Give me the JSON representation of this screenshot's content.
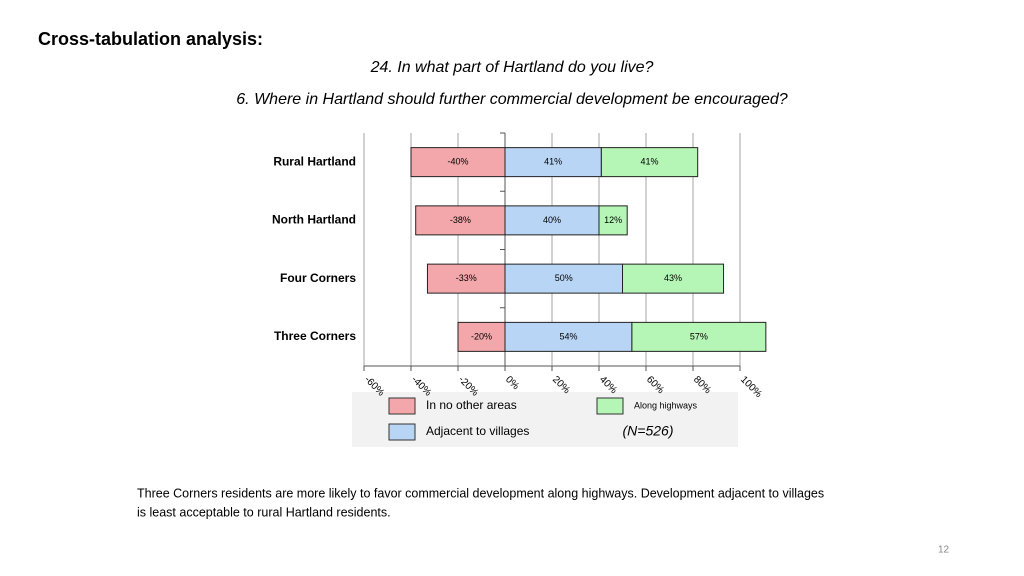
{
  "slide": {
    "heading": "Cross-tabulation analysis:",
    "question_a": "24. In what part of Hartland do you live?",
    "question_b": "6. Where in Hartland should further commercial development be encouraged?",
    "note": [
      "Three Corners residents are more likely to favor commercial development along highways. Development adjacent to villages",
      "is least acceptable to rural Hartland residents."
    ],
    "sample_size": "(N=526)",
    "page_number": "12"
  },
  "chart_data": {
    "type": "diverging-bar",
    "categories": [
      "Rural Hartland",
      "North Hartland",
      "Four Corners",
      "Three Corners"
    ],
    "series": [
      {
        "name": "In no other areas",
        "color": "#f4a7aa",
        "values": [
          -40,
          -38,
          -33,
          -20
        ],
        "value_labels": [
          "-40%",
          "-38%",
          "-33%",
          "-20%"
        ]
      },
      {
        "name": "Adjacent to villages",
        "color": "#b9d5f5",
        "values": [
          41,
          40,
          50,
          54
        ],
        "value_labels": [
          "41%",
          "40%",
          "50%",
          "54%"
        ]
      },
      {
        "name": "Along highways",
        "color": "#b5f5b5",
        "values": [
          41,
          12,
          43,
          57
        ],
        "value_labels": [
          "41%",
          "12%",
          "43%",
          "57%"
        ]
      }
    ],
    "xlim": [
      -60,
      100
    ],
    "xticks": [
      {
        "value": -60,
        "label": "-60%"
      },
      {
        "value": -40,
        "label": "-40%"
      },
      {
        "value": -20,
        "label": "-20%"
      },
      {
        "value": 0,
        "label": "0%"
      },
      {
        "value": 20,
        "label": "20%"
      },
      {
        "value": 40,
        "label": "40%"
      },
      {
        "value": 60,
        "label": "60%"
      },
      {
        "value": 80,
        "label": "80%"
      },
      {
        "value": 100,
        "label": "100%"
      }
    ],
    "grid": true
  }
}
